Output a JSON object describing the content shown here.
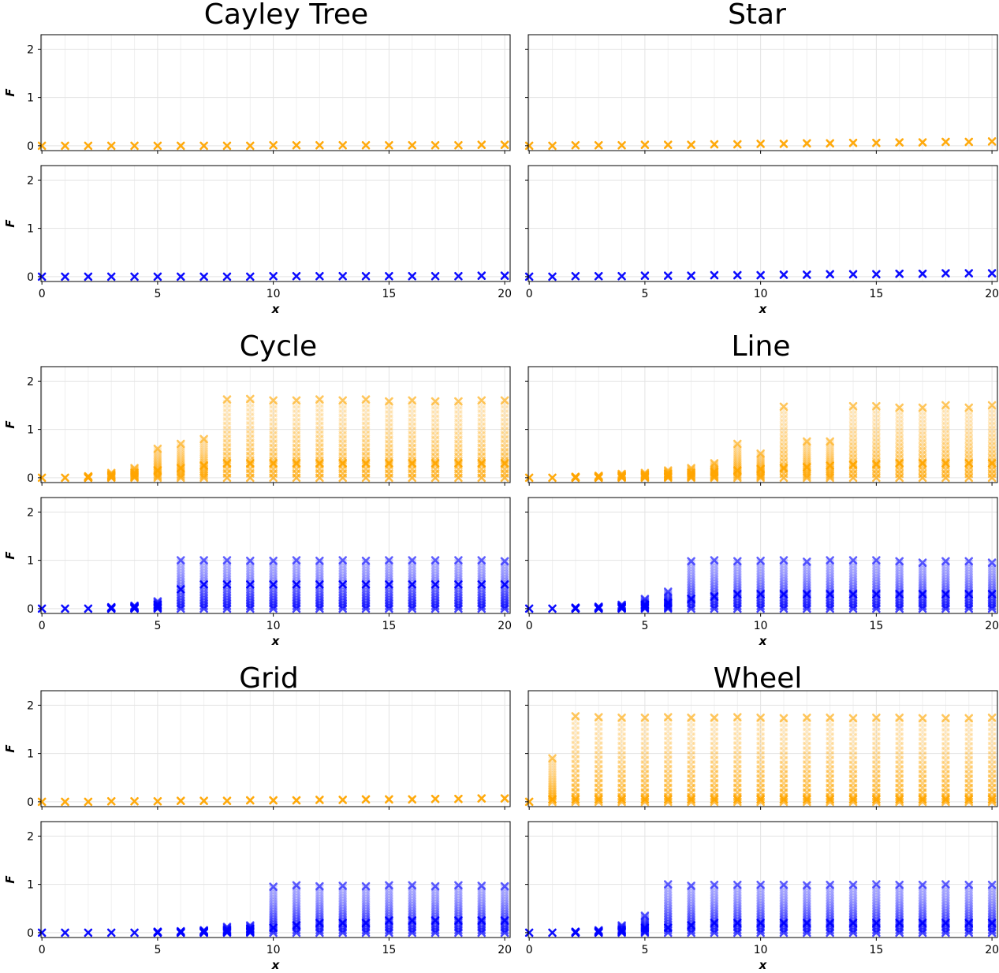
{
  "colors": {
    "upper": "#ffa500",
    "lower": "#0000ff"
  },
  "marker": "x",
  "chart_data": [
    {
      "type": "scatter",
      "title": "Cayley Tree",
      "xlabel": "x",
      "ylabel": "F",
      "xlim": [
        0,
        20
      ],
      "ylim": [
        -0.1,
        2.3
      ],
      "xticks": [
        0,
        5,
        10,
        15,
        20
      ],
      "yticks": [
        0,
        1,
        2
      ],
      "x": [
        0,
        1,
        2,
        3,
        4,
        5,
        6,
        7,
        8,
        9,
        10,
        11,
        12,
        13,
        14,
        15,
        16,
        17,
        18,
        19,
        20
      ],
      "series": [
        {
          "color": "#ffa500",
          "values": [
            0,
            0,
            0,
            0,
            0,
            0,
            0,
            0,
            0,
            0,
            0.01,
            0.01,
            0.01,
            0.01,
            0.01,
            0.01,
            0.01,
            0.01,
            0.01,
            0.02,
            0.02
          ],
          "spread_top": [
            0,
            0,
            0,
            0,
            0,
            0,
            0,
            0,
            0,
            0,
            0,
            0,
            0,
            0,
            0,
            0,
            0,
            0,
            0,
            0,
            0
          ]
        },
        {
          "color": "#0000ff",
          "values": [
            0,
            0,
            0,
            0,
            0,
            0,
            0,
            0,
            0,
            0,
            0.01,
            0.01,
            0.01,
            0.01,
            0.01,
            0.01,
            0.01,
            0.01,
            0.01,
            0.02,
            0.02
          ],
          "spread_top": [
            0,
            0,
            0,
            0,
            0,
            0,
            0,
            0,
            0,
            0,
            0,
            0,
            0,
            0,
            0,
            0,
            0,
            0,
            0,
            0,
            0
          ]
        }
      ]
    },
    {
      "type": "scatter",
      "title": "Star",
      "xlabel": "x",
      "ylabel": "",
      "xlim": [
        0,
        20
      ],
      "ylim": [
        -0.1,
        2.3
      ],
      "xticks": [
        0,
        5,
        10,
        15,
        20
      ],
      "yticks": [
        0,
        1,
        2
      ],
      "x": [
        0,
        1,
        2,
        3,
        4,
        5,
        6,
        7,
        8,
        9,
        10,
        11,
        12,
        13,
        14,
        15,
        16,
        17,
        18,
        19,
        20
      ],
      "series": [
        {
          "color": "#ffa500",
          "values": [
            0,
            0,
            0.01,
            0.01,
            0.01,
            0.02,
            0.02,
            0.02,
            0.03,
            0.03,
            0.04,
            0.04,
            0.05,
            0.05,
            0.06,
            0.06,
            0.07,
            0.07,
            0.08,
            0.08,
            0.09
          ],
          "spread_top": [
            0,
            0,
            0,
            0,
            0,
            0,
            0,
            0,
            0,
            0,
            0,
            0,
            0,
            0,
            0,
            0,
            0,
            0,
            0,
            0,
            0
          ]
        },
        {
          "color": "#0000ff",
          "values": [
            0,
            0,
            0.01,
            0.01,
            0.01,
            0.02,
            0.02,
            0.02,
            0.03,
            0.03,
            0.03,
            0.04,
            0.04,
            0.05,
            0.05,
            0.05,
            0.06,
            0.06,
            0.07,
            0.07,
            0.07
          ],
          "spread_top": [
            0,
            0,
            0,
            0,
            0,
            0,
            0,
            0,
            0,
            0,
            0,
            0,
            0,
            0,
            0,
            0,
            0,
            0,
            0,
            0,
            0
          ]
        }
      ]
    },
    {
      "type": "scatter",
      "title": "Cycle",
      "xlabel": "x",
      "ylabel": "F",
      "xlim": [
        0,
        20
      ],
      "ylim": [
        -0.1,
        2.3
      ],
      "xticks": [
        0,
        5,
        10,
        15,
        20
      ],
      "yticks": [
        0,
        1,
        2
      ],
      "x": [
        0,
        1,
        2,
        3,
        4,
        5,
        6,
        7,
        8,
        9,
        10,
        11,
        12,
        13,
        14,
        15,
        16,
        17,
        18,
        19,
        20
      ],
      "series": [
        {
          "color": "#ffa500",
          "values": [
            0,
            0,
            0.02,
            0.05,
            0.1,
            0.15,
            0.2,
            0.25,
            0.3,
            0.3,
            0.3,
            0.3,
            0.3,
            0.3,
            0.3,
            0.3,
            0.3,
            0.3,
            0.3,
            0.3,
            0.3
          ],
          "spread_top": [
            0,
            0,
            0.03,
            0.1,
            0.2,
            0.6,
            0.7,
            0.8,
            1.62,
            1.63,
            1.6,
            1.6,
            1.62,
            1.6,
            1.62,
            1.58,
            1.6,
            1.58,
            1.58,
            1.6,
            1.6
          ]
        },
        {
          "color": "#0000ff",
          "values": [
            0,
            0,
            0,
            0.02,
            0.03,
            0.08,
            0.4,
            0.5,
            0.5,
            0.5,
            0.5,
            0.5,
            0.5,
            0.5,
            0.5,
            0.5,
            0.5,
            0.5,
            0.5,
            0.5,
            0.5
          ],
          "spread_top": [
            0,
            0,
            0,
            0.03,
            0.06,
            0.15,
            1.0,
            1.0,
            1.0,
            0.99,
            0.99,
            1.0,
            0.99,
            1.0,
            0.99,
            1.0,
            1.0,
            1.0,
            1.0,
            1.0,
            0.98
          ]
        }
      ]
    },
    {
      "type": "scatter",
      "title": "Line",
      "xlabel": "x",
      "ylabel": "",
      "xlim": [
        0,
        20
      ],
      "ylim": [
        -0.1,
        2.3
      ],
      "xticks": [
        0,
        5,
        10,
        15,
        20
      ],
      "yticks": [
        0,
        1,
        2
      ],
      "x": [
        0,
        1,
        2,
        3,
        4,
        5,
        6,
        7,
        8,
        9,
        10,
        11,
        12,
        13,
        14,
        15,
        16,
        17,
        18,
        19,
        20
      ],
      "series": [
        {
          "color": "#ffa500",
          "values": [
            0,
            0,
            0.01,
            0.02,
            0.04,
            0.06,
            0.08,
            0.1,
            0.12,
            0.15,
            0.18,
            0.2,
            0.22,
            0.25,
            0.27,
            0.28,
            0.3,
            0.3,
            0.3,
            0.3,
            0.3
          ],
          "spread_top": [
            0,
            0,
            0.02,
            0.04,
            0.08,
            0.1,
            0.15,
            0.2,
            0.3,
            0.7,
            0.5,
            1.47,
            0.75,
            0.75,
            1.48,
            1.48,
            1.45,
            1.45,
            1.5,
            1.45,
            1.5
          ]
        },
        {
          "color": "#0000ff",
          "values": [
            0,
            0,
            0.01,
            0.02,
            0.04,
            0.08,
            0.12,
            0.2,
            0.25,
            0.3,
            0.3,
            0.3,
            0.3,
            0.3,
            0.3,
            0.3,
            0.3,
            0.3,
            0.3,
            0.3,
            0.3
          ],
          "spread_top": [
            0,
            0,
            0.02,
            0.04,
            0.08,
            0.2,
            0.35,
            0.98,
            1.0,
            0.98,
            0.99,
            1.0,
            0.97,
            1.0,
            1.0,
            1.0,
            0.98,
            0.95,
            0.98,
            0.98,
            0.95
          ]
        }
      ]
    },
    {
      "type": "scatter",
      "title": "Grid",
      "xlabel": "x",
      "ylabel": "F",
      "xlim": [
        0,
        20
      ],
      "ylim": [
        -0.1,
        2.3
      ],
      "xticks": [
        0,
        5,
        10,
        15,
        20
      ],
      "yticks": [
        0,
        1,
        2
      ],
      "x": [
        0,
        1,
        2,
        3,
        4,
        5,
        6,
        7,
        8,
        9,
        10,
        11,
        12,
        13,
        14,
        15,
        16,
        17,
        18,
        19,
        20
      ],
      "series": [
        {
          "color": "#ffa500",
          "values": [
            0,
            0,
            0,
            0.01,
            0.01,
            0.01,
            0.02,
            0.02,
            0.02,
            0.03,
            0.03,
            0.03,
            0.04,
            0.04,
            0.05,
            0.05,
            0.05,
            0.06,
            0.06,
            0.07,
            0.07
          ],
          "spread_top": [
            0,
            0,
            0,
            0,
            0,
            0,
            0,
            0,
            0,
            0,
            0,
            0,
            0,
            0,
            0,
            0,
            0,
            0,
            0,
            0,
            0
          ]
        },
        {
          "color": "#0000ff",
          "values": [
            0,
            0,
            0,
            0,
            0,
            0.01,
            0.02,
            0.03,
            0.05,
            0.08,
            0.1,
            0.15,
            0.2,
            0.2,
            0.2,
            0.25,
            0.25,
            0.25,
            0.25,
            0.25,
            0.25
          ],
          "spread_top": [
            0,
            0,
            0,
            0,
            0,
            0.02,
            0.03,
            0.05,
            0.12,
            0.15,
            0.95,
            0.98,
            0.96,
            0.97,
            0.96,
            0.98,
            0.98,
            0.96,
            0.98,
            0.97,
            0.96
          ]
        }
      ]
    },
    {
      "type": "scatter",
      "title": "Wheel",
      "xlabel": "x",
      "ylabel": "",
      "xlim": [
        0,
        20
      ],
      "ylim": [
        -0.1,
        2.3
      ],
      "xticks": [
        0,
        5,
        10,
        15,
        20
      ],
      "yticks": [
        0,
        1,
        2
      ],
      "x": [
        0,
        1,
        2,
        3,
        4,
        5,
        6,
        7,
        8,
        9,
        10,
        11,
        12,
        13,
        14,
        15,
        16,
        17,
        18,
        19,
        20
      ],
      "series": [
        {
          "color": "#ffa500",
          "values": [
            0,
            0.05,
            0.05,
            0.05,
            0.05,
            0.05,
            0.05,
            0.05,
            0.05,
            0.05,
            0.05,
            0.05,
            0.05,
            0.05,
            0.05,
            0.05,
            0.05,
            0.05,
            0.05,
            0.05,
            0.05
          ],
          "spread_top": [
            0,
            0.9,
            1.77,
            1.75,
            1.74,
            1.74,
            1.75,
            1.74,
            1.74,
            1.75,
            1.74,
            1.73,
            1.74,
            1.74,
            1.73,
            1.74,
            1.74,
            1.73,
            1.73,
            1.73,
            1.74
          ]
        },
        {
          "color": "#0000ff",
          "values": [
            0,
            0,
            0.01,
            0.02,
            0.05,
            0.1,
            0.1,
            0.15,
            0.2,
            0.2,
            0.2,
            0.2,
            0.2,
            0.2,
            0.2,
            0.2,
            0.2,
            0.2,
            0.2,
            0.2,
            0.2
          ],
          "spread_top": [
            0,
            0,
            0.02,
            0.05,
            0.15,
            0.35,
            1.0,
            0.97,
            0.99,
            0.99,
            0.99,
            0.99,
            0.98,
            0.99,
            0.99,
            1.0,
            0.99,
            0.99,
            1.0,
            0.99,
            0.99
          ]
        }
      ]
    }
  ]
}
